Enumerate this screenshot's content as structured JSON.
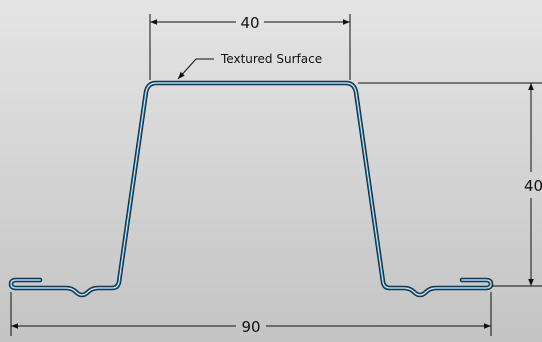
{
  "dimensions": {
    "top_width": "40",
    "height": "40",
    "overall_width": "90"
  },
  "annotation": {
    "label": "Textured Surface"
  },
  "colors": {
    "background_top": "#e4e4e4",
    "background_bottom": "#c4c4c4",
    "profile_fill": "#f4f4f4",
    "profile_edge": "#1f6fa0",
    "profile_outline": "#0d2a3a",
    "dimension_line": "#111111"
  }
}
